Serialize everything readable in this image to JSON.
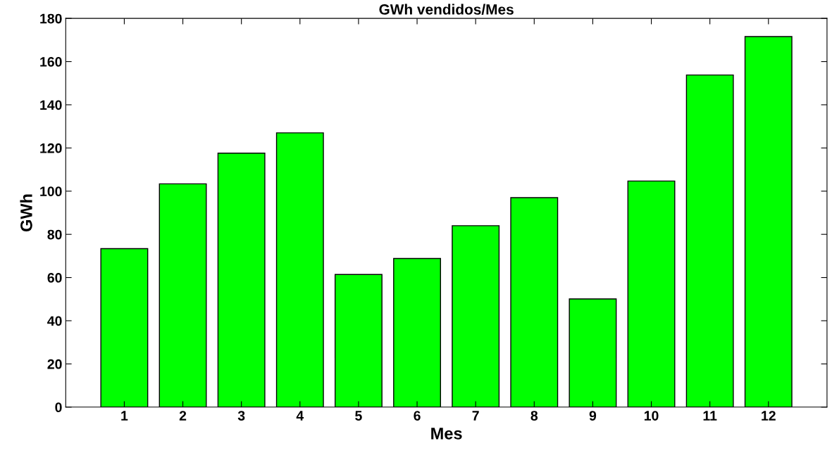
{
  "chart_data": {
    "type": "bar",
    "title": "GWh vendidos/Mes",
    "xlabel": "Mes",
    "ylabel": "GWh",
    "categories": [
      "1",
      "2",
      "3",
      "4",
      "5",
      "6",
      "7",
      "8",
      "9",
      "10",
      "11",
      "12"
    ],
    "values": [
      73.4,
      103.4,
      117.6,
      127,
      61.4,
      68.8,
      84,
      97,
      50.1,
      104.7,
      153.8,
      171.6
    ],
    "color": "#00ff00",
    "ylim": [
      0,
      180
    ],
    "yticks": [
      0,
      20,
      40,
      60,
      80,
      100,
      120,
      140,
      160,
      180
    ],
    "grid": false
  }
}
